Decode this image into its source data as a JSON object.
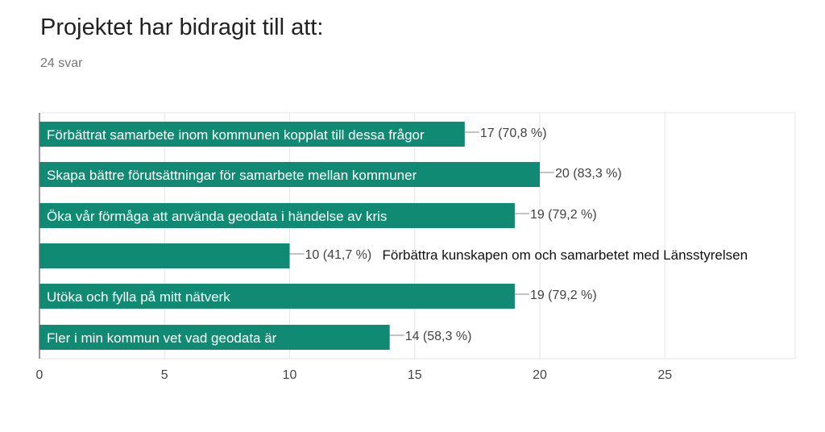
{
  "chart_data": {
    "type": "bar",
    "orientation": "horizontal",
    "title": "Projektet har bidragit till att:",
    "subtitle": "24 svar",
    "bar_color": "#118a73",
    "xlim": [
      0,
      30
    ],
    "xticks": [
      0,
      5,
      10,
      15,
      20,
      25
    ],
    "grid": true,
    "bars": [
      {
        "label": "Förbättrat samarbete inom kommunen kopplat till dessa frågor",
        "value": 17,
        "value_label": "17 (70,8 %)"
      },
      {
        "label": "Skapa bättre förutsättningar för samarbete mellan kommuner",
        "value": 20,
        "value_label": "20 (83,3 %)"
      },
      {
        "label": "Öka vår förmåga att använda geodata i händelse av kris",
        "value": 19,
        "value_label": "19 (79,2 %)"
      },
      {
        "label": "Förbättra kunskapen om och samarbetet med Länsstyrelsen",
        "value": 10,
        "value_label": "10 (41,7 %)",
        "label_outside": true
      },
      {
        "label": "Utöka och fylla på mitt nätverk",
        "value": 19,
        "value_label": "19 (79,2 %)"
      },
      {
        "label": "Fler i min kommun vet vad geodata är",
        "value": 14,
        "value_label": "14 (58,3 %)"
      }
    ]
  }
}
